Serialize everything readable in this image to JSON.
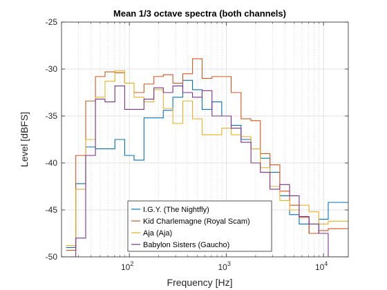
{
  "chart_data": {
    "type": "line",
    "title": "Mean 1/3 octave spectra (both channels)",
    "xlabel": "Frequency [Hz]",
    "ylabel": "Level [dBFS]",
    "xscale": "log",
    "xlim": [
      20,
      18000
    ],
    "ylim": [
      -50,
      -25
    ],
    "yticks": [
      -50,
      -45,
      -40,
      -35,
      -30,
      -25
    ],
    "xtick_labels": [
      {
        "value": 100,
        "base": "10",
        "exp": "2"
      },
      {
        "value": 1000,
        "base": "10",
        "exp": "3"
      },
      {
        "value": 10000,
        "base": "10",
        "exp": "4"
      }
    ],
    "grid": true,
    "minor_grid": true,
    "legend_position": "bottom-center",
    "step_style": "stairs",
    "x": [
      25,
      31.5,
      40,
      50,
      63,
      80,
      100,
      125,
      160,
      200,
      250,
      315,
      400,
      500,
      630,
      800,
      1000,
      1250,
      1600,
      2000,
      2500,
      3150,
      4000,
      5000,
      6300,
      8000,
      10000,
      12500,
      16000
    ],
    "series": [
      {
        "name": "I.G.Y. (The Nightfly)",
        "color": "#0072BD",
        "values": [
          -49.0,
          -42.2,
          -38.3,
          -38.5,
          -38.5,
          -37.5,
          -39.2,
          -39.7,
          -35.2,
          -35.2,
          -34.4,
          -33.0,
          -31.2,
          -32.2,
          -34.3,
          -33.5,
          -35.0,
          -36.0,
          -37.5,
          -38.5,
          -39.5,
          -41.0,
          -43.5,
          -45.5,
          -46.5,
          -47.5,
          -46.0,
          -44.2,
          -44.2
        ]
      },
      {
        "name": "Kid Charlemagne (Royal Scam)",
        "color": "#D95319",
        "values": [
          -49.3,
          -39.2,
          -33.4,
          -30.8,
          -30.3,
          -30.4,
          -31.5,
          -32.5,
          -31.6,
          -30.8,
          -30.6,
          -31.5,
          -30.5,
          -28.9,
          -31.0,
          -30.8,
          -30.8,
          -32.5,
          -35.3,
          -35.5,
          -39.0,
          -40.2,
          -43.0,
          -44.5,
          -45.8,
          -47.5,
          -47.2,
          -47.0,
          -47.0
        ]
      },
      {
        "name": "Aja (Aja)",
        "color": "#EDB120",
        "values": [
          -48.8,
          -42.8,
          -37.5,
          -33.0,
          -31.3,
          -30.2,
          -31.5,
          -33.0,
          -33.5,
          -32.2,
          -34.2,
          -35.8,
          -33.4,
          -35.3,
          -37.0,
          -37.0,
          -36.3,
          -37.0,
          -37.2,
          -38.5,
          -40.5,
          -42.5,
          -44.0,
          -45.0,
          -44.5,
          -45.2,
          -46.5,
          -46.2,
          -46.2
        ]
      },
      {
        "name": "Babylon Sisters (Gaucho)",
        "color": "#7E2F8E",
        "values": [
          -50.0,
          -48.0,
          -39.2,
          -33.2,
          -33.5,
          -31.8,
          -34.3,
          -34.3,
          -33.2,
          -32.0,
          -32.5,
          -31.8,
          -32.5,
          -33.0,
          -32.3,
          -35.0,
          -35.0,
          -36.3,
          -37.8,
          -40.0,
          -41.0,
          -42.8,
          -42.3,
          -43.5,
          -45.7,
          -46.5,
          -47.5,
          -50.0,
          -50.0
        ]
      }
    ]
  }
}
